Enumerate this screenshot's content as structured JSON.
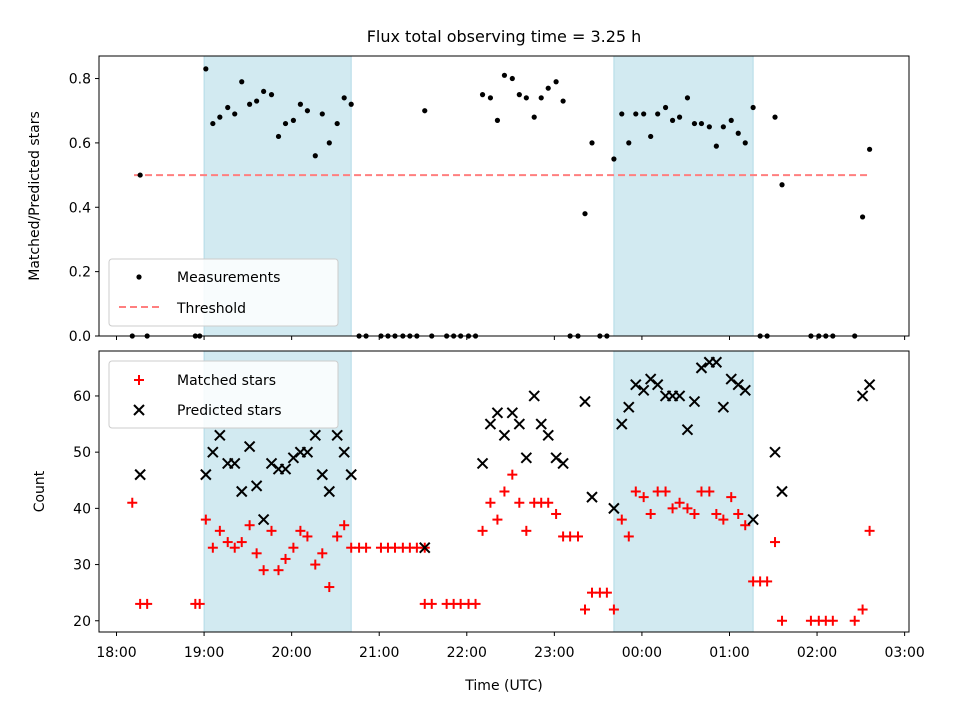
{
  "title": "Flux total observing time = 3.25 h",
  "colors": {
    "shade": "#add8e6",
    "measurement": "#000000",
    "threshold": "#ff7f7f",
    "matched": "#ff0000",
    "predicted": "#000000"
  },
  "chart_data": [
    {
      "type": "scatter",
      "panel": "top",
      "ylabel": "Matched/Predicted stars",
      "xlabel": "",
      "xlim": [
        17.8,
        27.05
      ],
      "ylim": [
        0,
        0.87
      ],
      "yticks": [
        0.0,
        0.2,
        0.4,
        0.6,
        0.8
      ],
      "yticklabels": [
        "0.0",
        "0.2",
        "0.4",
        "0.6",
        "0.8"
      ],
      "shaded_intervals": [
        [
          19.0,
          20.68
        ],
        [
          23.68,
          25.27
        ]
      ],
      "legend": {
        "position": "lower-left",
        "entries": [
          "Measurements",
          "Threshold"
        ]
      },
      "threshold": {
        "name": "Threshold",
        "y": 0.5,
        "x": [
          18.2,
          26.6
        ]
      },
      "series": [
        {
          "name": "Measurements",
          "points": [
            [
              18.18,
              0
            ],
            [
              18.27,
              0.5
            ],
            [
              18.35,
              0
            ],
            [
              18.9,
              0
            ],
            [
              18.95,
              0
            ],
            [
              19.02,
              0.83
            ],
            [
              19.1,
              0.66
            ],
            [
              19.18,
              0.68
            ],
            [
              19.27,
              0.71
            ],
            [
              19.35,
              0.69
            ],
            [
              19.43,
              0.79
            ],
            [
              19.52,
              0.72
            ],
            [
              19.6,
              0.73
            ],
            [
              19.68,
              0.76
            ],
            [
              19.77,
              0.75
            ],
            [
              19.85,
              0.62
            ],
            [
              19.93,
              0.66
            ],
            [
              20.02,
              0.67
            ],
            [
              20.1,
              0.72
            ],
            [
              20.18,
              0.7
            ],
            [
              20.27,
              0.56
            ],
            [
              20.35,
              0.69
            ],
            [
              20.43,
              0.6
            ],
            [
              20.52,
              0.66
            ],
            [
              20.6,
              0.74
            ],
            [
              20.68,
              0.72
            ],
            [
              20.77,
              0
            ],
            [
              20.85,
              0
            ],
            [
              21.02,
              0
            ],
            [
              21.1,
              0
            ],
            [
              21.18,
              0
            ],
            [
              21.27,
              0
            ],
            [
              21.35,
              0
            ],
            [
              21.43,
              0
            ],
            [
              21.52,
              0.7
            ],
            [
              21.6,
              0
            ],
            [
              21.77,
              0
            ],
            [
              21.85,
              0
            ],
            [
              21.93,
              0
            ],
            [
              22.02,
              0
            ],
            [
              22.1,
              0
            ],
            [
              22.18,
              0.75
            ],
            [
              22.27,
              0.74
            ],
            [
              22.35,
              0.67
            ],
            [
              22.43,
              0.81
            ],
            [
              22.52,
              0.8
            ],
            [
              22.6,
              0.75
            ],
            [
              22.68,
              0.74
            ],
            [
              22.77,
              0.68
            ],
            [
              22.85,
              0.74
            ],
            [
              22.93,
              0.77
            ],
            [
              23.02,
              0.79
            ],
            [
              23.1,
              0.73
            ],
            [
              23.18,
              0
            ],
            [
              23.27,
              0
            ],
            [
              23.35,
              0.38
            ],
            [
              23.43,
              0.6
            ],
            [
              23.52,
              0
            ],
            [
              23.6,
              0
            ],
            [
              23.68,
              0.55
            ],
            [
              23.77,
              0.69
            ],
            [
              23.85,
              0.6
            ],
            [
              23.93,
              0.69
            ],
            [
              24.02,
              0.69
            ],
            [
              24.1,
              0.62
            ],
            [
              24.18,
              0.69
            ],
            [
              24.27,
              0.71
            ],
            [
              24.35,
              0.67
            ],
            [
              24.43,
              0.68
            ],
            [
              24.52,
              0.74
            ],
            [
              24.6,
              0.66
            ],
            [
              24.68,
              0.66
            ],
            [
              24.77,
              0.65
            ],
            [
              24.85,
              0.59
            ],
            [
              24.93,
              0.65
            ],
            [
              25.02,
              0.67
            ],
            [
              25.1,
              0.63
            ],
            [
              25.18,
              0.6
            ],
            [
              25.27,
              0.71
            ],
            [
              25.35,
              0
            ],
            [
              25.43,
              0
            ],
            [
              25.52,
              0.68
            ],
            [
              25.6,
              0.47
            ],
            [
              25.93,
              0
            ],
            [
              26.02,
              0
            ],
            [
              26.1,
              0
            ],
            [
              26.18,
              0
            ],
            [
              26.43,
              0
            ],
            [
              26.52,
              0.37
            ],
            [
              26.6,
              0.58
            ]
          ]
        }
      ]
    },
    {
      "type": "scatter",
      "panel": "bottom",
      "xlabel": "Time (UTC)",
      "ylabel": "Count",
      "xlim": [
        17.8,
        27.05
      ],
      "ylim": [
        18,
        68
      ],
      "xticks": [
        18,
        19,
        20,
        21,
        22,
        23,
        24,
        25,
        26,
        27
      ],
      "xticklabels": [
        "18:00",
        "19:00",
        "20:00",
        "21:00",
        "22:00",
        "23:00",
        "00:00",
        "01:00",
        "02:00",
        "03:00"
      ],
      "yticks": [
        20,
        30,
        40,
        50,
        60
      ],
      "yticklabels": [
        "20",
        "30",
        "40",
        "50",
        "60"
      ],
      "shaded_intervals": [
        [
          19.0,
          20.68
        ],
        [
          23.68,
          25.27
        ]
      ],
      "legend": {
        "position": "upper-left",
        "entries": [
          "Matched stars",
          "Predicted stars"
        ]
      },
      "series": [
        {
          "name": "Matched stars",
          "marker": "plus",
          "points": [
            [
              18.18,
              41
            ],
            [
              18.27,
              23
            ],
            [
              18.35,
              23
            ],
            [
              18.9,
              23
            ],
            [
              18.95,
              23
            ],
            [
              19.02,
              38
            ],
            [
              19.1,
              33
            ],
            [
              19.18,
              36
            ],
            [
              19.27,
              34
            ],
            [
              19.35,
              33
            ],
            [
              19.43,
              34
            ],
            [
              19.52,
              37
            ],
            [
              19.6,
              32
            ],
            [
              19.68,
              29
            ],
            [
              19.77,
              36
            ],
            [
              19.85,
              29
            ],
            [
              19.93,
              31
            ],
            [
              20.02,
              33
            ],
            [
              20.1,
              36
            ],
            [
              20.18,
              35
            ],
            [
              20.27,
              30
            ],
            [
              20.35,
              32
            ],
            [
              20.43,
              26
            ],
            [
              20.52,
              35
            ],
            [
              20.6,
              37
            ],
            [
              20.68,
              33
            ],
            [
              20.77,
              33
            ],
            [
              20.85,
              33
            ],
            [
              21.02,
              33
            ],
            [
              21.1,
              33
            ],
            [
              21.18,
              33
            ],
            [
              21.27,
              33
            ],
            [
              21.35,
              33
            ],
            [
              21.43,
              33
            ],
            [
              21.52,
              33
            ],
            [
              21.6,
              23
            ],
            [
              21.52,
              23
            ],
            [
              21.77,
              23
            ],
            [
              21.85,
              23
            ],
            [
              21.93,
              23
            ],
            [
              22.02,
              23
            ],
            [
              22.1,
              23
            ],
            [
              22.18,
              36
            ],
            [
              22.27,
              41
            ],
            [
              22.35,
              38
            ],
            [
              22.43,
              43
            ],
            [
              22.52,
              46
            ],
            [
              22.6,
              41
            ],
            [
              22.68,
              36
            ],
            [
              22.77,
              41
            ],
            [
              22.85,
              41
            ],
            [
              22.93,
              41
            ],
            [
              23.02,
              39
            ],
            [
              23.1,
              35
            ],
            [
              23.18,
              35
            ],
            [
              23.27,
              35
            ],
            [
              23.35,
              22
            ],
            [
              23.43,
              25
            ],
            [
              23.52,
              25
            ],
            [
              23.6,
              25
            ],
            [
              23.68,
              22
            ],
            [
              23.77,
              38
            ],
            [
              23.85,
              35
            ],
            [
              23.93,
              43
            ],
            [
              24.02,
              42
            ],
            [
              24.1,
              39
            ],
            [
              24.18,
              43
            ],
            [
              24.27,
              43
            ],
            [
              24.35,
              40
            ],
            [
              24.43,
              41
            ],
            [
              24.52,
              40
            ],
            [
              24.6,
              39
            ],
            [
              24.68,
              43
            ],
            [
              24.77,
              43
            ],
            [
              24.85,
              39
            ],
            [
              24.93,
              38
            ],
            [
              25.02,
              42
            ],
            [
              25.1,
              39
            ],
            [
              25.18,
              37
            ],
            [
              25.27,
              27
            ],
            [
              25.35,
              27
            ],
            [
              25.43,
              27
            ],
            [
              25.52,
              34
            ],
            [
              25.6,
              20
            ],
            [
              25.93,
              20
            ],
            [
              26.02,
              20
            ],
            [
              26.1,
              20
            ],
            [
              26.18,
              20
            ],
            [
              26.43,
              20
            ],
            [
              26.52,
              22
            ],
            [
              26.6,
              36
            ]
          ]
        },
        {
          "name": "Predicted stars",
          "marker": "x",
          "points": [
            [
              18.27,
              46
            ],
            [
              19.02,
              46
            ],
            [
              19.1,
              50
            ],
            [
              19.18,
              53
            ],
            [
              19.27,
              48
            ],
            [
              19.35,
              48
            ],
            [
              19.43,
              43
            ],
            [
              19.52,
              51
            ],
            [
              19.6,
              44
            ],
            [
              19.68,
              38
            ],
            [
              19.77,
              48
            ],
            [
              19.85,
              47
            ],
            [
              19.93,
              47
            ],
            [
              20.02,
              49
            ],
            [
              20.1,
              50
            ],
            [
              20.18,
              50
            ],
            [
              20.27,
              53
            ],
            [
              20.35,
              46
            ],
            [
              20.43,
              43
            ],
            [
              20.52,
              53
            ],
            [
              20.6,
              50
            ],
            [
              20.68,
              46
            ],
            [
              21.52,
              33
            ],
            [
              22.18,
              48
            ],
            [
              22.27,
              55
            ],
            [
              22.35,
              57
            ],
            [
              22.43,
              53
            ],
            [
              22.52,
              57
            ],
            [
              22.6,
              55
            ],
            [
              22.68,
              49
            ],
            [
              22.77,
              60
            ],
            [
              22.85,
              55
            ],
            [
              22.93,
              53
            ],
            [
              23.02,
              49
            ],
            [
              23.1,
              48
            ],
            [
              23.35,
              59
            ],
            [
              23.43,
              42
            ],
            [
              23.68,
              40
            ],
            [
              23.77,
              55
            ],
            [
              23.85,
              58
            ],
            [
              23.93,
              62
            ],
            [
              24.02,
              61
            ],
            [
              24.1,
              63
            ],
            [
              24.18,
              62
            ],
            [
              24.27,
              60
            ],
            [
              24.35,
              60
            ],
            [
              24.43,
              60
            ],
            [
              24.52,
              54
            ],
            [
              24.6,
              59
            ],
            [
              24.68,
              65
            ],
            [
              24.77,
              66
            ],
            [
              24.85,
              66
            ],
            [
              24.93,
              58
            ],
            [
              25.02,
              63
            ],
            [
              25.1,
              62
            ],
            [
              25.18,
              61
            ],
            [
              25.27,
              38
            ],
            [
              25.52,
              50
            ],
            [
              25.6,
              43
            ],
            [
              26.52,
              60
            ],
            [
              26.6,
              62
            ]
          ]
        }
      ]
    }
  ]
}
